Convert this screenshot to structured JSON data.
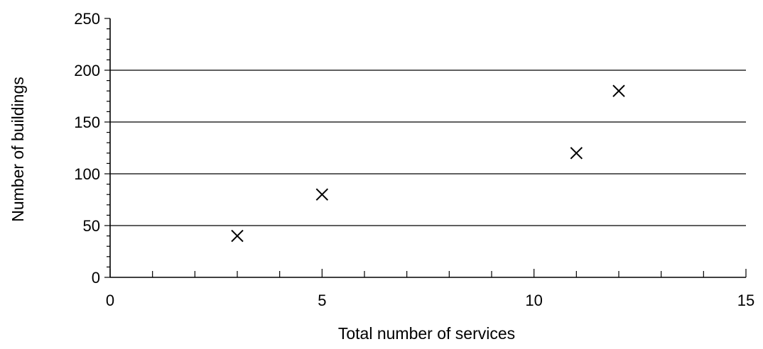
{
  "chart_data": {
    "type": "scatter",
    "title": "",
    "xlabel": "Total number of services",
    "ylabel": "Number of buildings",
    "xlim": [
      0,
      15
    ],
    "ylim": [
      0,
      250
    ],
    "xticks": [
      0,
      5,
      10,
      15
    ],
    "yticks": [
      0,
      50,
      100,
      150,
      200,
      250
    ],
    "x_minor_step": 1,
    "y_minor_step": 10,
    "grid": "horizontal at y = 50, 100, 150, 200",
    "marker": "x",
    "series": [
      {
        "points": [
          {
            "x": 3,
            "y": 40
          },
          {
            "x": 5,
            "y": 80
          },
          {
            "x": 11,
            "y": 120
          },
          {
            "x": 12,
            "y": 180
          }
        ]
      }
    ]
  }
}
